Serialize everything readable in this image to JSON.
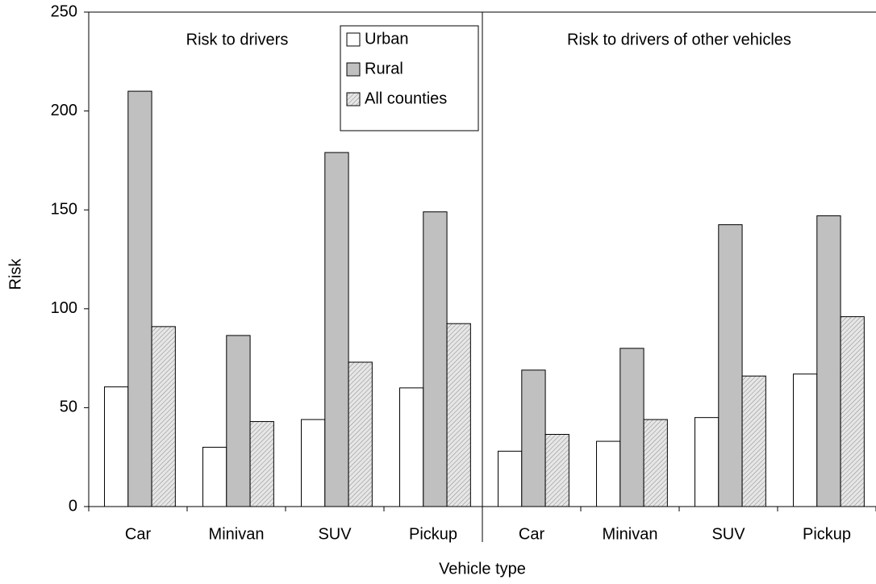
{
  "chart_data": {
    "type": "bar",
    "annotations": [
      "Risk to drivers",
      "Risk to drivers of other vehicles"
    ],
    "x_label": "Vehicle type",
    "y_label": "Risk",
    "categories": [
      "Car",
      "Minivan",
      "SUV",
      "Pickup",
      "Car",
      "Minivan",
      "SUV",
      "Pickup"
    ],
    "series": [
      {
        "name": "Urban",
        "color": "#ffffff",
        "values": [
          60.5,
          30,
          44,
          60,
          28,
          33,
          45,
          67
        ]
      },
      {
        "name": "Rural",
        "color": "#c0c0c0",
        "values": [
          210,
          86.5,
          179,
          149,
          69,
          80,
          142.5,
          147
        ]
      },
      {
        "name": "All counties",
        "color": "#e6e6e6",
        "hatch": true,
        "values": [
          91,
          43,
          73,
          92.5,
          36.5,
          44,
          66,
          96
        ]
      }
    ],
    "ylim": [
      0,
      250
    ],
    "yticks": [
      0,
      50,
      100,
      150,
      200,
      250
    ],
    "grid": false
  }
}
